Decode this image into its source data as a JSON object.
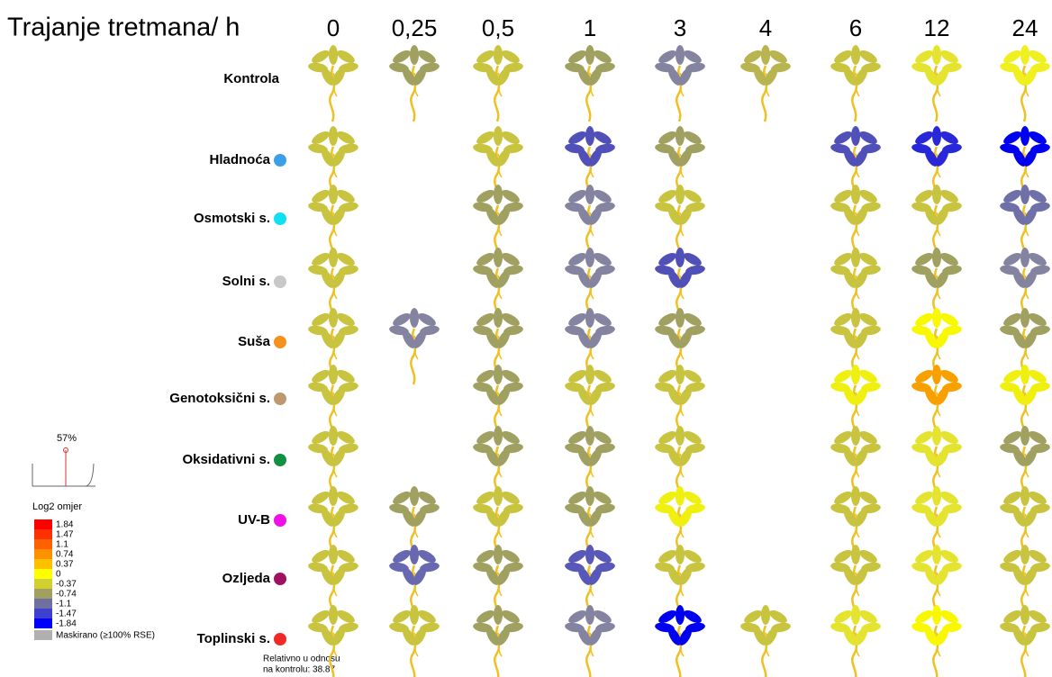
{
  "header": {
    "title": "Trajanje tretmana/ h",
    "times": [
      "0",
      "0,25",
      "0,5",
      "1",
      "3",
      "4",
      "6",
      "12",
      "24"
    ]
  },
  "rows": [
    {
      "label": "Kontrola",
      "dot": null,
      "cells": [
        "#c8c440",
        "#a0a060",
        "#c8c440",
        "#a0a060",
        "#8484a0",
        "#b8b450",
        "#c8c440",
        "#e4e430",
        "#f0f020"
      ]
    },
    {
      "label": "Hladnoća",
      "dot": "#3ca0e8",
      "cells": [
        "#c8c440",
        null,
        "#c8c440",
        "#5050b8",
        "#a0a060",
        null,
        "#5050b8",
        "#2828d8",
        "#0000f0"
      ]
    },
    {
      "label": "Osmotski s.",
      "dot": "#10e0f0",
      "cells": [
        "#c8c440",
        null,
        "#a0a060",
        "#8484a0",
        "#c8c440",
        null,
        "#c8c440",
        "#c8c440",
        "#7070a8"
      ]
    },
    {
      "label": "Solni s.",
      "dot": "#c8c8c8",
      "cells": [
        "#c8c440",
        null,
        "#a0a060",
        "#8484a0",
        "#5050b8",
        null,
        "#c8c440",
        "#a0a060",
        "#8484a0"
      ]
    },
    {
      "label": "Suša",
      "dot": "#f8901c",
      "cells": [
        "#c8c440",
        "#8484a0",
        "#a0a060",
        "#8484a0",
        "#a0a060",
        null,
        "#c8c440",
        "#f8f800",
        "#a0a060"
      ]
    },
    {
      "label": "Genotoksični s.",
      "dot": "#c09870",
      "cells": [
        "#c8c440",
        null,
        "#a0a060",
        "#c8c440",
        "#c8c440",
        null,
        "#f0f010",
        "#f8a000",
        "#f0f010"
      ]
    },
    {
      "label": "Oksidativni s.",
      "dot": "#109040",
      "cells": [
        "#c8c440",
        null,
        "#a0a060",
        "#a0a060",
        "#c8c440",
        null,
        "#c8c440",
        "#e4e430",
        "#a0a060"
      ]
    },
    {
      "label": "UV-B",
      "dot": "#f010e8",
      "cells": [
        "#c8c440",
        "#a0a060",
        "#c8c440",
        "#a0a060",
        "#f0f010",
        null,
        "#c8c440",
        "#e4e430",
        "#c8c440"
      ]
    },
    {
      "label": "Ozljeda",
      "dot": "#a01060",
      "cells": [
        "#c8c440",
        "#6868b0",
        "#a0a060",
        "#5858b8",
        "#c8c440",
        null,
        "#c8c440",
        "#e4e430",
        "#c8c440"
      ]
    },
    {
      "label": "Toplinski s.",
      "dot": "#f02828",
      "cells": [
        "#c8c440",
        "#c8c440",
        "#a0a060",
        "#8484a0",
        "#0000f0",
        "#c8c440",
        "#e4e430",
        "#f8f800",
        "#c8c440"
      ]
    }
  ],
  "threshold": "57%",
  "legend": {
    "title": "Log2 omjer",
    "entries": [
      {
        "label": "1.84",
        "color": "#ff0000"
      },
      {
        "label": "1.47",
        "color": "#ff3000"
      },
      {
        "label": "1.1",
        "color": "#ff6000"
      },
      {
        "label": "0.74",
        "color": "#ff9000"
      },
      {
        "label": "0.37",
        "color": "#ffc000"
      },
      {
        "label": "0",
        "color": "#ffff00"
      },
      {
        "label": "-0.37",
        "color": "#d0d030"
      },
      {
        "label": "-0.74",
        "color": "#a0a060"
      },
      {
        "label": "-1.1",
        "color": "#7070a0"
      },
      {
        "label": "-1.47",
        "color": "#4040d0"
      },
      {
        "label": "-1.84",
        "color": "#0000ff"
      }
    ],
    "masked": {
      "label": "Maskirano (≥100% RSE)",
      "color": "#b0b0b0"
    }
  },
  "footnote": [
    "Relativno u odnosu",
    "na kontrolu: 38.87"
  ]
}
